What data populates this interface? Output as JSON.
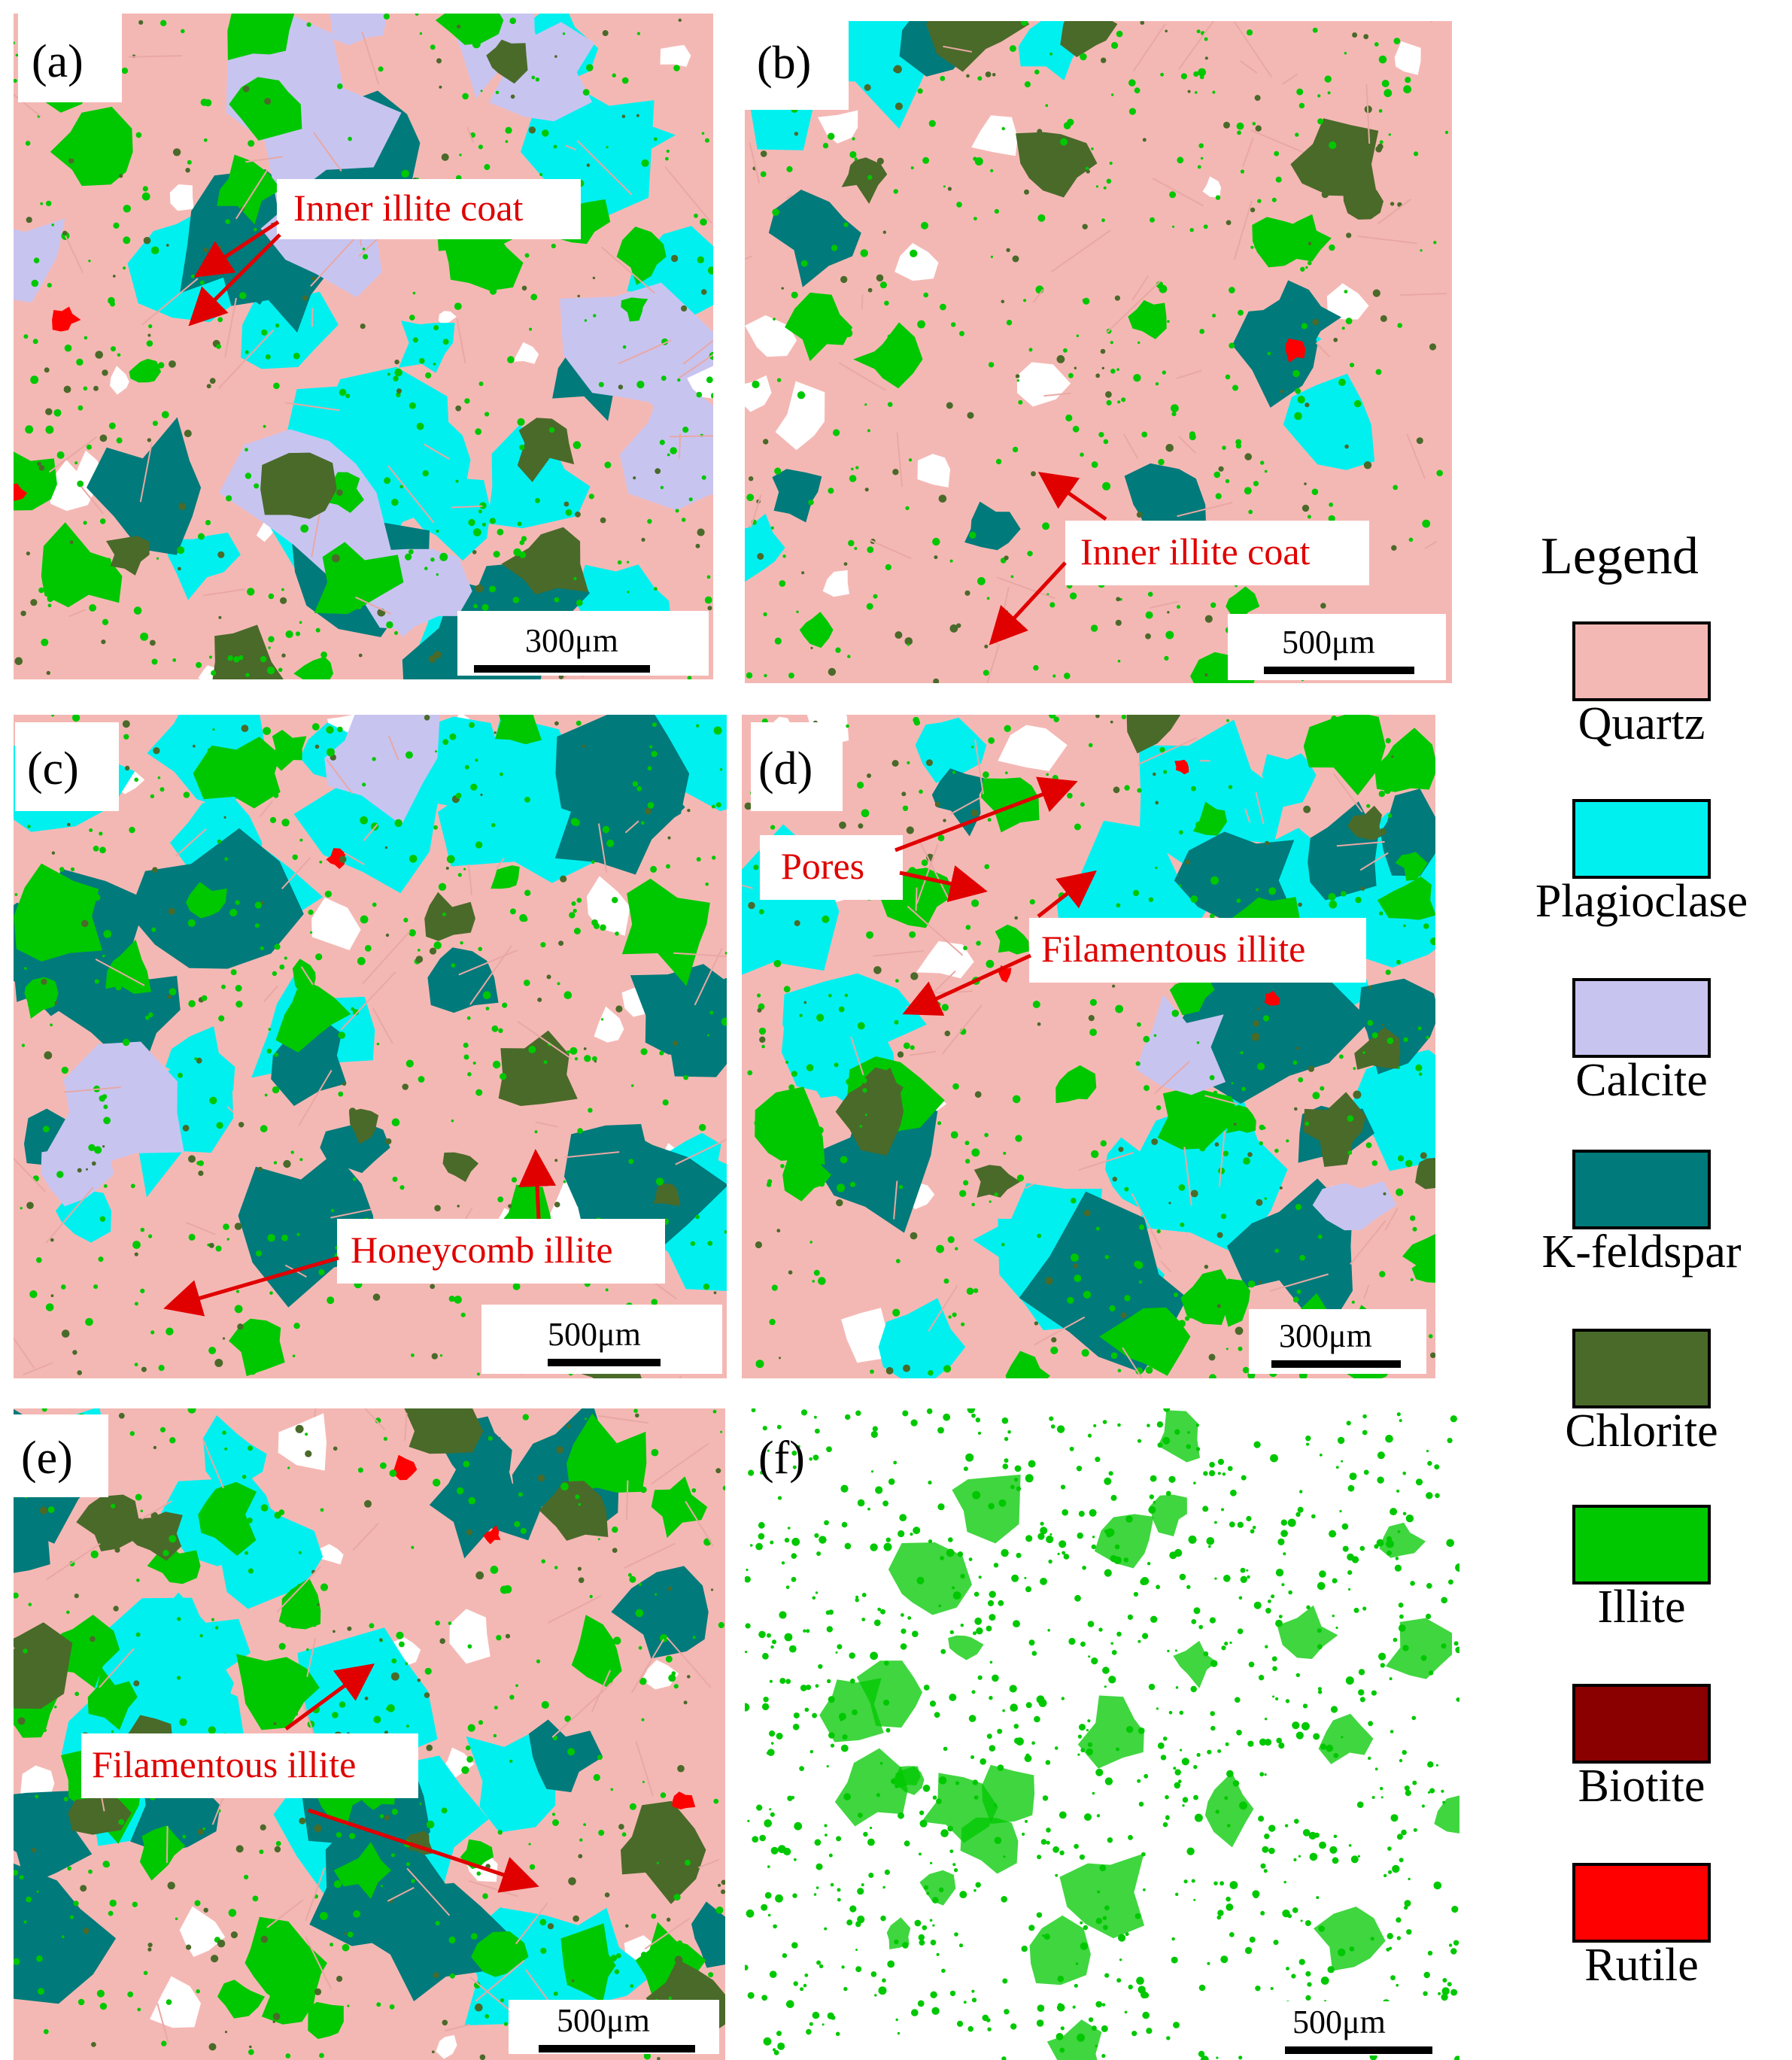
{
  "panels": [
    {
      "label": "(a)",
      "scalebar": "300μm",
      "callouts": [
        "Inner illite coat"
      ]
    },
    {
      "label": "(b)",
      "scalebar": "500μm",
      "callouts": [
        "Inner illite coat"
      ]
    },
    {
      "label": "(c)",
      "scalebar": "500μm",
      "callouts": [
        "Honeycomb illite"
      ]
    },
    {
      "label": "(d)",
      "scalebar": "300μm",
      "callouts": [
        "Pores",
        "Filamentous illite"
      ]
    },
    {
      "label": "(e)",
      "scalebar": "500μm",
      "callouts": [
        "Filamentous illite"
      ]
    },
    {
      "label": "(f)",
      "scalebar": "500μm",
      "callouts": []
    }
  ],
  "legend": {
    "title": "Legend",
    "items": [
      {
        "label": "Quartz",
        "color": "#f4b8b4"
      },
      {
        "label": "Plagioclase",
        "color": "#00f0f0"
      },
      {
        "label": "Calcite",
        "color": "#c8c4f0"
      },
      {
        "label": "K-feldspar",
        "color": "#007a7a"
      },
      {
        "label": "Chlorite",
        "color": "#4a6a2a"
      },
      {
        "label": "Illite",
        "color": "#00c800"
      },
      {
        "label": "Biotite",
        "color": "#8a0000"
      },
      {
        "label": "Rutile",
        "color": "#ff0000"
      }
    ]
  },
  "colors": {
    "callout_text": "#e00000",
    "arrow": "#e00000"
  }
}
